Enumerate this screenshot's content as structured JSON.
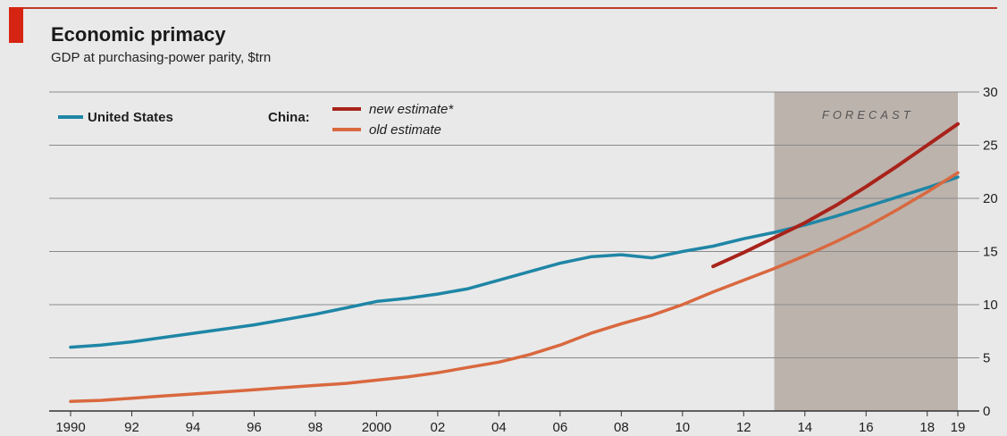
{
  "chart_data": {
    "type": "line",
    "title": "Economic primacy",
    "subtitle": "GDP at purchasing-power parity, $trn",
    "xlabel": "",
    "ylabel": "",
    "xlim": [
      1990,
      2019
    ],
    "ylim": [
      0,
      30
    ],
    "x_ticks": [
      1990,
      1992,
      1994,
      1996,
      1998,
      2000,
      2002,
      2004,
      2006,
      2008,
      2010,
      2012,
      2014,
      2016,
      2018,
      2019
    ],
    "x_tick_labels": [
      "1990",
      "92",
      "94",
      "96",
      "98",
      "2000",
      "02",
      "04",
      "06",
      "08",
      "10",
      "12",
      "14",
      "16",
      "18",
      "19"
    ],
    "y_ticks": [
      0,
      5,
      10,
      15,
      20,
      25,
      30
    ],
    "y_tick_labels": [
      "0",
      "5",
      "10",
      "15",
      "20",
      "25",
      "30"
    ],
    "grid": true,
    "legend_position": "top-left",
    "legend": {
      "us_label": "United States",
      "china_label": "China:",
      "new_label": "new estimate*",
      "old_label": "old estimate"
    },
    "forecast": {
      "label": "FORECAST",
      "range": [
        2013,
        2019
      ]
    },
    "series": [
      {
        "name": "United States",
        "color": "#1f86a6",
        "x": [
          1990,
          1991,
          1992,
          1993,
          1994,
          1995,
          1996,
          1997,
          1998,
          1999,
          2000,
          2001,
          2002,
          2003,
          2004,
          2005,
          2006,
          2007,
          2008,
          2009,
          2010,
          2011,
          2012,
          2013,
          2014,
          2015,
          2016,
          2017,
          2018,
          2019
        ],
        "y": [
          6.0,
          6.2,
          6.5,
          6.9,
          7.3,
          7.7,
          8.1,
          8.6,
          9.1,
          9.7,
          10.3,
          10.6,
          11.0,
          11.5,
          12.3,
          13.1,
          13.9,
          14.5,
          14.7,
          14.4,
          15.0,
          15.5,
          16.2,
          16.8,
          17.5,
          18.3,
          19.2,
          20.1,
          21.0,
          22.0
        ]
      },
      {
        "name": "new estimate*",
        "color": "#a8231b",
        "x": [
          2011,
          2012,
          2013,
          2014,
          2015,
          2016,
          2017,
          2018,
          2019
        ],
        "y": [
          13.6,
          14.9,
          16.3,
          17.7,
          19.3,
          21.1,
          23.0,
          25.0,
          27.0
        ]
      },
      {
        "name": "old estimate",
        "color": "#d9683f",
        "x": [
          1990,
          1991,
          1992,
          1993,
          1994,
          1995,
          1996,
          1997,
          1998,
          1999,
          2000,
          2001,
          2002,
          2003,
          2004,
          2005,
          2006,
          2007,
          2008,
          2009,
          2010,
          2011,
          2012,
          2013,
          2014,
          2015,
          2016,
          2017,
          2018,
          2019
        ],
        "y": [
          0.9,
          1.0,
          1.2,
          1.4,
          1.6,
          1.8,
          2.0,
          2.2,
          2.4,
          2.6,
          2.9,
          3.2,
          3.6,
          4.1,
          4.6,
          5.3,
          6.2,
          7.3,
          8.2,
          9.0,
          10.0,
          11.2,
          12.3,
          13.4,
          14.6,
          15.9,
          17.3,
          18.9,
          20.6,
          22.4
        ]
      }
    ]
  }
}
